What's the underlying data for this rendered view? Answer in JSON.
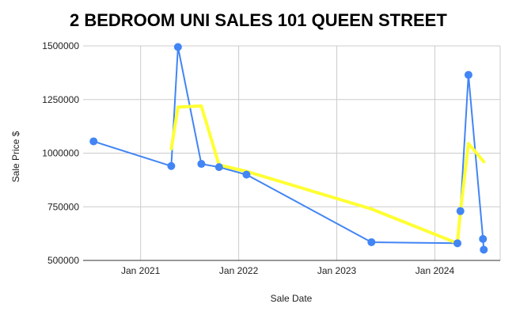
{
  "chart_data": {
    "type": "line",
    "title": "2 BEDROOM UNI SALES 101 QUEEN STREET",
    "xlabel": "Sale Date",
    "ylabel": "Sale Price $",
    "ylim": [
      500000,
      1500000
    ],
    "xlim": [
      "2020-06-01",
      "2024-08-31"
    ],
    "grid": true,
    "x_ticks": [
      {
        "label": "Jan 2021",
        "date": "2021-01-01"
      },
      {
        "label": "Jan 2022",
        "date": "2022-01-01"
      },
      {
        "label": "Jan 2023",
        "date": "2023-01-01"
      },
      {
        "label": "Jan 2024",
        "date": "2024-01-01"
      }
    ],
    "y_ticks": [
      {
        "label": "500000",
        "value": 500000
      },
      {
        "label": "750000",
        "value": 750000
      },
      {
        "label": "1000000",
        "value": 1000000
      },
      {
        "label": "1250000",
        "value": 1250000
      },
      {
        "label": "1500000",
        "value": 1500000
      }
    ],
    "series": [
      {
        "color": "#4285f4",
        "style": "line-with-markers",
        "points": [
          {
            "x": "2020-07-10",
            "y": 1055000
          },
          {
            "x": "2021-04-25",
            "y": 940000
          },
          {
            "x": "2021-05-20",
            "y": 1495000
          },
          {
            "x": "2021-08-15",
            "y": 950000
          },
          {
            "x": "2021-10-20",
            "y": 935000
          },
          {
            "x": "2022-01-30",
            "y": 900000
          },
          {
            "x": "2023-05-10",
            "y": 585000
          },
          {
            "x": "2024-03-25",
            "y": 580000
          },
          {
            "x": "2024-04-05",
            "y": 730000
          },
          {
            "x": "2024-05-05",
            "y": 1365000
          },
          {
            "x": "2024-06-28",
            "y": 600000
          },
          {
            "x": "2024-07-01",
            "y": 550000
          }
        ]
      },
      {
        "color": "#ffff33",
        "style": "trend-line",
        "points": [
          {
            "x": "2021-04-25",
            "y": 1020000
          },
          {
            "x": "2021-05-20",
            "y": 1215000
          },
          {
            "x": "2021-08-15",
            "y": 1220000
          },
          {
            "x": "2021-10-20",
            "y": 945000
          },
          {
            "x": "2022-01-30",
            "y": 915000
          },
          {
            "x": "2023-05-10",
            "y": 740000
          },
          {
            "x": "2024-03-25",
            "y": 580000
          },
          {
            "x": "2024-04-05",
            "y": 725000
          },
          {
            "x": "2024-05-05",
            "y": 1045000
          },
          {
            "x": "2024-07-01",
            "y": 960000
          }
        ]
      }
    ]
  }
}
